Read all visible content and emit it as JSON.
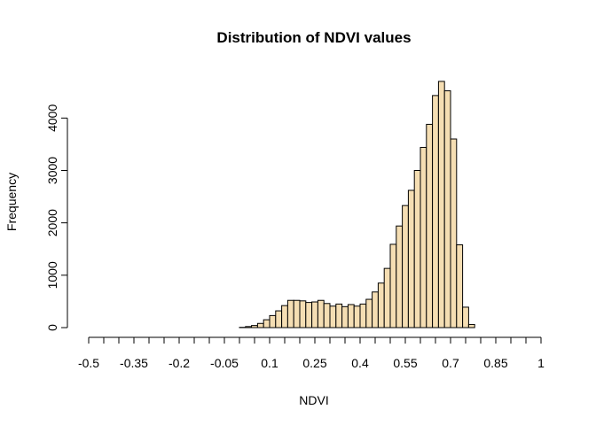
{
  "chart_data": {
    "type": "bar",
    "title": "Distribution of NDVI values",
    "xlabel": "NDVI",
    "ylabel": "Frequency",
    "bar_color": "#F5DEB3",
    "bar_outline": "#000000",
    "xlim": [
      -0.5,
      1.0
    ],
    "ylim": [
      0,
      4800
    ],
    "x_tick_step": 0.05,
    "x_tick_labels": [
      {
        "x": -0.5,
        "label": "-0.5"
      },
      {
        "x": -0.35,
        "label": "-0.35"
      },
      {
        "x": -0.2,
        "label": "-0.2"
      },
      {
        "x": -0.05,
        "label": "-0.05"
      },
      {
        "x": 0.1,
        "label": "0.1"
      },
      {
        "x": 0.25,
        "label": "0.25"
      },
      {
        "x": 0.4,
        "label": "0.4"
      },
      {
        "x": 0.55,
        "label": "0.55"
      },
      {
        "x": 0.7,
        "label": "0.7"
      },
      {
        "x": 0.85,
        "label": "0.85"
      },
      {
        "x": 1.0,
        "label": "1"
      }
    ],
    "y_ticks": [
      0,
      1000,
      2000,
      3000,
      4000
    ],
    "y_tick_labels": [
      "0",
      "1000",
      "2000",
      "3000",
      "4000"
    ],
    "bin_width": 0.02,
    "bin_start": 0.0,
    "counts": [
      5,
      20,
      40,
      80,
      150,
      230,
      320,
      420,
      520,
      520,
      510,
      480,
      490,
      520,
      460,
      410,
      450,
      400,
      440,
      410,
      450,
      540,
      680,
      850,
      1130,
      1590,
      1940,
      2330,
      2620,
      3000,
      3440,
      3880,
      4430,
      4700,
      4520,
      3600,
      1580,
      390,
      60
    ]
  }
}
